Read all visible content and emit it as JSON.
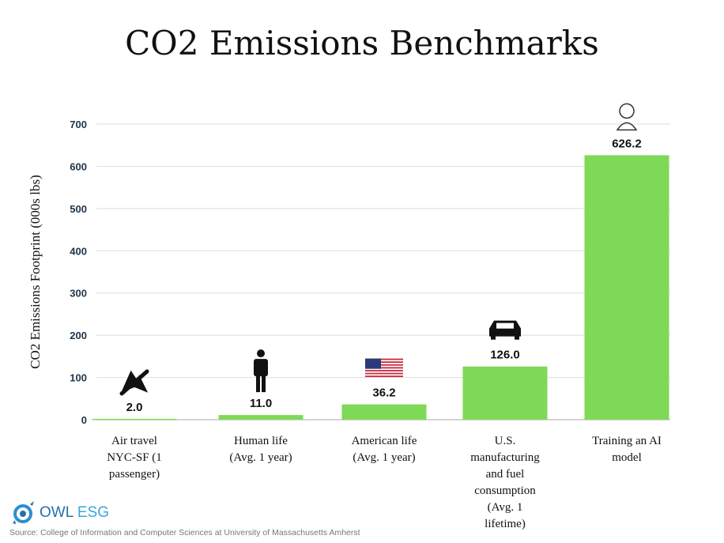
{
  "chart_data": {
    "type": "bar",
    "title": "CO2 Emissions Benchmarks",
    "ylabel": "CO2 Emissions Footprint (000s lbs)",
    "xlabel": "",
    "ylim": [
      0,
      700
    ],
    "yticks": [
      0,
      100,
      200,
      300,
      400,
      500,
      600,
      700
    ],
    "grid": true,
    "bar_color": "#7ed957",
    "categories": [
      "Air travel NYC-SF (1 passenger)",
      "Human life (Avg. 1 year)",
      "American life (Avg. 1 year)",
      "U.S. manufacturing and fuel consumption (Avg. 1 lifetime)",
      "Training an AI model"
    ],
    "category_lines": [
      [
        "Air travel",
        "NYC-SF (1",
        "passenger)"
      ],
      [
        "Human life",
        "(Avg. 1 year)"
      ],
      [
        "American life",
        "(Avg. 1 year)"
      ],
      [
        "U.S.",
        "manufacturing",
        "and fuel",
        "consumption",
        "(Avg. 1",
        "lifetime)"
      ],
      [
        "Training an AI",
        "model"
      ]
    ],
    "values": [
      2.0,
      11.0,
      36.2,
      126.0,
      626.2
    ],
    "data_labels": [
      "2.0",
      "11.0",
      "36.2",
      "126.0",
      "626.2"
    ],
    "icons": [
      "airplane-icon",
      "person-icon",
      "us-flag-icon",
      "car-icon",
      "robot-icon"
    ]
  },
  "logo": {
    "name_a": "OWL ",
    "name_b": "ESG"
  },
  "source": "Source: College of Information and Computer Sciences at University of Massachusetts Amherst"
}
